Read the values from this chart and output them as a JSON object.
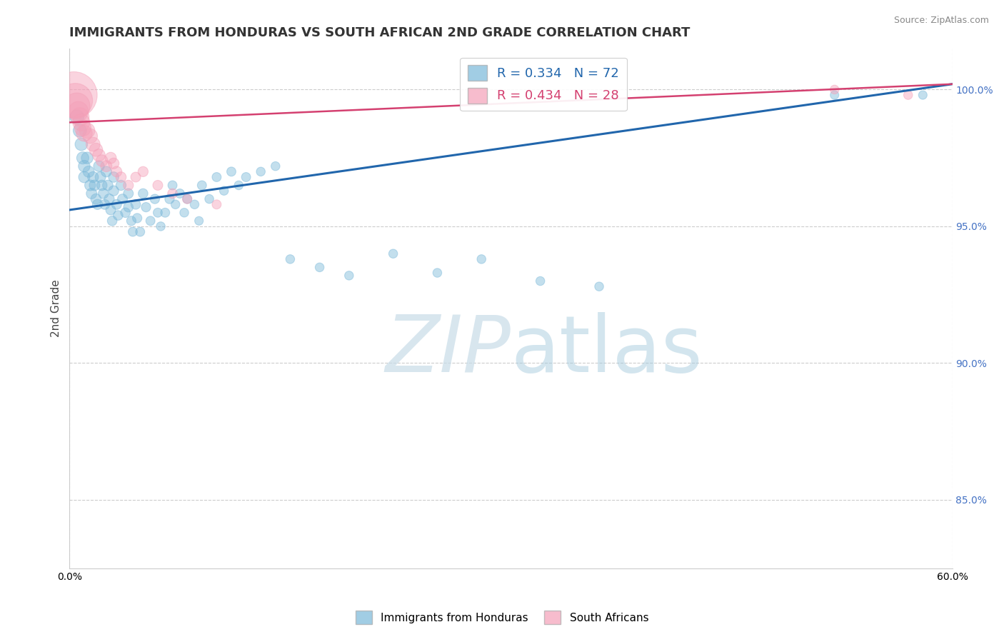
{
  "title": "IMMIGRANTS FROM HONDURAS VS SOUTH AFRICAN 2ND GRADE CORRELATION CHART",
  "source": "Source: ZipAtlas.com",
  "ylabel": "2nd Grade",
  "xlim": [
    0.0,
    0.6
  ],
  "ylim": [
    0.825,
    1.015
  ],
  "yticks": [
    0.85,
    0.9,
    0.95,
    1.0
  ],
  "ytick_labels": [
    "85.0%",
    "90.0%",
    "95.0%",
    "100.0%"
  ],
  "xtick_labels_left": "0.0%",
  "xtick_labels_right": "60.0%",
  "legend_labels": [
    "Immigrants from Honduras",
    "South Africans"
  ],
  "blue_color": "#7ab8d9",
  "pink_color": "#f4a0b8",
  "blue_line_color": "#2166ac",
  "pink_line_color": "#d44070",
  "R_blue": 0.334,
  "N_blue": 72,
  "R_pink": 0.434,
  "N_pink": 28,
  "watermark_zip": "ZIP",
  "watermark_atlas": "atlas",
  "blue_scatter_x": [
    0.005,
    0.007,
    0.008,
    0.009,
    0.01,
    0.01,
    0.012,
    0.013,
    0.014,
    0.015,
    0.016,
    0.017,
    0.018,
    0.019,
    0.02,
    0.021,
    0.022,
    0.023,
    0.024,
    0.025,
    0.026,
    0.027,
    0.028,
    0.029,
    0.03,
    0.03,
    0.032,
    0.033,
    0.035,
    0.036,
    0.038,
    0.04,
    0.04,
    0.042,
    0.043,
    0.045,
    0.046,
    0.048,
    0.05,
    0.052,
    0.055,
    0.058,
    0.06,
    0.062,
    0.065,
    0.068,
    0.07,
    0.072,
    0.075,
    0.078,
    0.08,
    0.085,
    0.088,
    0.09,
    0.095,
    0.1,
    0.105,
    0.11,
    0.115,
    0.12,
    0.13,
    0.14,
    0.15,
    0.17,
    0.19,
    0.22,
    0.25,
    0.28,
    0.32,
    0.36,
    0.52,
    0.58
  ],
  "blue_scatter_y": [
    0.99,
    0.985,
    0.98,
    0.975,
    0.972,
    0.968,
    0.975,
    0.97,
    0.965,
    0.962,
    0.968,
    0.965,
    0.96,
    0.958,
    0.972,
    0.968,
    0.965,
    0.962,
    0.958,
    0.97,
    0.965,
    0.96,
    0.956,
    0.952,
    0.968,
    0.963,
    0.958,
    0.954,
    0.965,
    0.96,
    0.955,
    0.962,
    0.957,
    0.952,
    0.948,
    0.958,
    0.953,
    0.948,
    0.962,
    0.957,
    0.952,
    0.96,
    0.955,
    0.95,
    0.955,
    0.96,
    0.965,
    0.958,
    0.962,
    0.955,
    0.96,
    0.958,
    0.952,
    0.965,
    0.96,
    0.968,
    0.963,
    0.97,
    0.965,
    0.968,
    0.97,
    0.972,
    0.938,
    0.935,
    0.932,
    0.94,
    0.933,
    0.938,
    0.93,
    0.928,
    0.998,
    0.998
  ],
  "blue_scatter_size": [
    200,
    180,
    160,
    150,
    140,
    130,
    140,
    130,
    120,
    115,
    120,
    115,
    110,
    105,
    120,
    115,
    110,
    105,
    100,
    115,
    110,
    105,
    100,
    95,
    110,
    105,
    100,
    95,
    105,
    100,
    95,
    100,
    95,
    90,
    85,
    95,
    90,
    85,
    95,
    90,
    85,
    90,
    85,
    80,
    85,
    90,
    85,
    80,
    85,
    80,
    85,
    80,
    75,
    85,
    80,
    85,
    80,
    85,
    80,
    85,
    80,
    80,
    80,
    80,
    80,
    80,
    80,
    80,
    80,
    80,
    75,
    75
  ],
  "pink_scatter_x": [
    0.003,
    0.004,
    0.005,
    0.006,
    0.007,
    0.008,
    0.009,
    0.01,
    0.012,
    0.014,
    0.016,
    0.018,
    0.02,
    0.022,
    0.025,
    0.028,
    0.03,
    0.032,
    0.035,
    0.04,
    0.045,
    0.05,
    0.06,
    0.07,
    0.08,
    0.1,
    0.52,
    0.57
  ],
  "pink_scatter_y": [
    0.998,
    0.996,
    0.994,
    0.992,
    0.99,
    0.988,
    0.986,
    0.984,
    0.985,
    0.983,
    0.98,
    0.978,
    0.976,
    0.974,
    0.972,
    0.975,
    0.973,
    0.97,
    0.968,
    0.965,
    0.968,
    0.97,
    0.965,
    0.962,
    0.96,
    0.958,
    1.0,
    0.998
  ],
  "pink_scatter_size": [
    2200,
    1200,
    700,
    400,
    350,
    300,
    280,
    260,
    240,
    220,
    200,
    180,
    160,
    140,
    130,
    130,
    120,
    115,
    110,
    105,
    100,
    105,
    100,
    95,
    90,
    85,
    80,
    80
  ],
  "blue_line_x0": 0.0,
  "blue_line_x1": 0.6,
  "blue_line_y0": 0.956,
  "blue_line_y1": 1.002,
  "pink_line_x0": 0.0,
  "pink_line_x1": 0.6,
  "pink_line_y0": 0.988,
  "pink_line_y1": 1.002
}
